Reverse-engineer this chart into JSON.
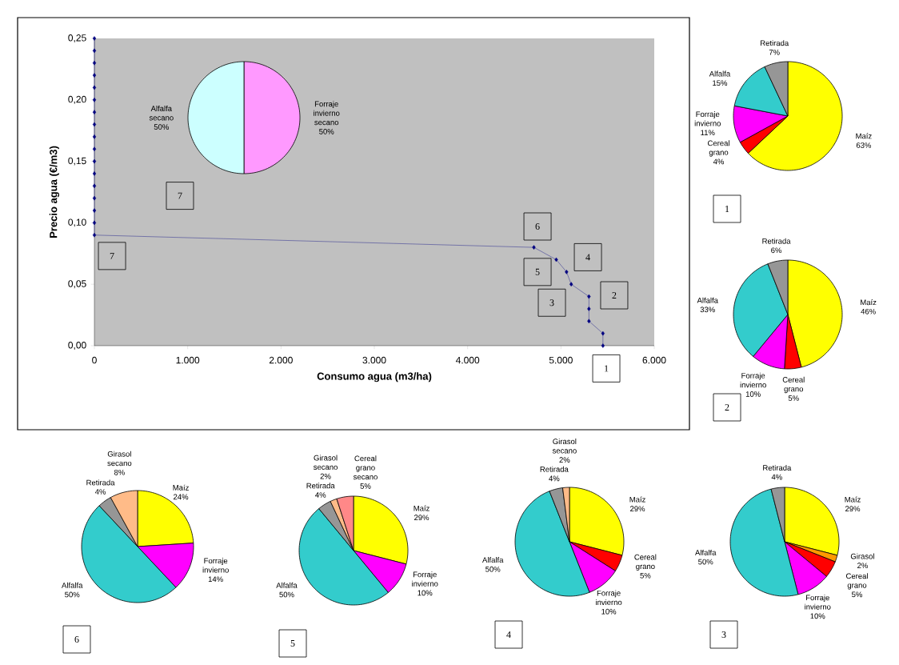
{
  "chart_data": [
    {
      "type": "line",
      "xlabel": "Consumo agua (m3/ha)",
      "ylabel": "Precio agua (€/m3)",
      "color": "#000080",
      "marker": "diamond",
      "x": [
        0,
        0,
        0,
        0,
        0,
        0,
        0,
        0,
        0,
        0,
        0,
        0,
        0,
        0,
        0,
        0,
        0,
        4710,
        4950,
        5060,
        5110,
        5300,
        5300,
        5300,
        5450,
        5450
      ],
      "values": [
        0.25,
        0.24,
        0.23,
        0.22,
        0.21,
        0.2,
        0.19,
        0.18,
        0.17,
        0.16,
        0.15,
        0.14,
        0.13,
        0.12,
        0.11,
        0.1,
        0.09,
        0.08,
        0.07,
        0.06,
        0.05,
        0.04,
        0.03,
        0.02,
        0.01,
        0
      ],
      "xlim": [
        0,
        6000
      ],
      "ylim": [
        0,
        0.25
      ],
      "xticks": [
        {
          "value": 0,
          "label": "0"
        },
        {
          "value": 1000,
          "label": "1.000"
        },
        {
          "value": 2000,
          "label": "2.000"
        },
        {
          "value": 3000,
          "label": "3.000"
        },
        {
          "value": 4000,
          "label": "4.000"
        },
        {
          "value": 5000,
          "label": "5.000"
        },
        {
          "value": 6000,
          "label": "6.000"
        }
      ],
      "yticks": [
        {
          "value": 0,
          "label": "0,00"
        },
        {
          "value": 0.05,
          "label": "0,05"
        },
        {
          "value": 0.1,
          "label": "0,10"
        },
        {
          "value": 0.15,
          "label": "0,15"
        },
        {
          "value": 0.2,
          "label": "0,20"
        },
        {
          "value": 0.25,
          "label": "0,25"
        }
      ],
      "annotations": [
        {
          "text": "7",
          "x": 917,
          "y": 0.122
        },
        {
          "text": "7",
          "x": 189,
          "y": 0.073
        },
        {
          "text": "6",
          "x": 4749,
          "y": 0.097
        },
        {
          "text": "4",
          "x": 5289,
          "y": 0.072
        },
        {
          "text": "5",
          "x": 4749,
          "y": 0.06
        },
        {
          "text": "2",
          "x": 5571,
          "y": 0.041
        },
        {
          "text": "3",
          "x": 4903,
          "y": 0.035
        },
        {
          "text": "1",
          "x": 5486,
          "y": 0
        }
      ]
    },
    {
      "type": "pie",
      "categories": [
        "Forraje invierno secano",
        "Alfalfa secano"
      ],
      "values": [
        50,
        50
      ],
      "colors": [
        "#ff99ff",
        "#ccffff"
      ],
      "value_labels": [
        "50%",
        "50%"
      ]
    },
    {
      "type": "pie",
      "title": "1",
      "categories": [
        "Maíz",
        "Cereal grano",
        "Forraje invierno",
        "Alfalfa",
        "Retirada"
      ],
      "values": [
        63,
        4,
        11,
        15,
        7
      ],
      "colors": [
        "#ffff00",
        "#ff0000",
        "#ff00ff",
        "#33cccc",
        "#969696"
      ],
      "value_labels": [
        "63%",
        "4%",
        "11%",
        "15%",
        "7%"
      ]
    },
    {
      "type": "pie",
      "title": "2",
      "categories": [
        "Maíz",
        "Cereal grano",
        "Forraje invierno",
        "Alfalfa",
        "Retirada"
      ],
      "values": [
        46,
        5,
        10,
        33,
        6
      ],
      "colors": [
        "#ffff00",
        "#ff0000",
        "#ff00ff",
        "#33cccc",
        "#969696"
      ],
      "value_labels": [
        "46%",
        "5%",
        "10%",
        "33%",
        "6%"
      ]
    },
    {
      "type": "pie",
      "title": "6",
      "categories": [
        "Maíz",
        "Forraje invierno",
        "Alfalfa",
        "Retirada",
        "Girasol secano"
      ],
      "values": [
        24,
        14,
        50,
        4,
        8
      ],
      "colors": [
        "#ffff00",
        "#ff00ff",
        "#33cccc",
        "#969696",
        "#ffbb88"
      ],
      "value_labels": [
        "24%",
        "14%",
        "50%",
        "4%",
        "8%"
      ]
    },
    {
      "type": "pie",
      "title": "5",
      "categories": [
        "Maíz",
        "Forraje invierno",
        "Alfalfa",
        "Retirada",
        "Girasol secano",
        "Cereal grano secano"
      ],
      "values": [
        29,
        10,
        50,
        4,
        2,
        5
      ],
      "colors": [
        "#ffff00",
        "#ff00ff",
        "#33cccc",
        "#969696",
        "#ffbb88",
        "#ff8888"
      ],
      "value_labels": [
        "29%",
        "10%",
        "50%",
        "4%",
        "2%",
        "5%"
      ]
    },
    {
      "type": "pie",
      "title": "4",
      "categories": [
        "Maíz",
        "Cereal grano",
        "Forraje invierno",
        "Alfalfa",
        "Retirada",
        "Girasol secano"
      ],
      "values": [
        29,
        5,
        10,
        50,
        4,
        2
      ],
      "colors": [
        "#ffff00",
        "#ff0000",
        "#ff00ff",
        "#33cccc",
        "#969696",
        "#ffbb88"
      ],
      "value_labels": [
        "29%",
        "5%",
        "10%",
        "50%",
        "4%",
        "2%"
      ]
    },
    {
      "type": "pie",
      "title": "3",
      "categories": [
        "Maíz",
        "Girasol",
        "Cereal grano",
        "Forraje invierno",
        "Alfalfa",
        "Retirada"
      ],
      "values": [
        29,
        2,
        5,
        10,
        50,
        4
      ],
      "colors": [
        "#ffff00",
        "#ff9900",
        "#ff0000",
        "#ff00ff",
        "#33cccc",
        "#969696"
      ],
      "value_labels": [
        "29%",
        "2%",
        "5%",
        "10%",
        "50%",
        "4%"
      ]
    }
  ]
}
